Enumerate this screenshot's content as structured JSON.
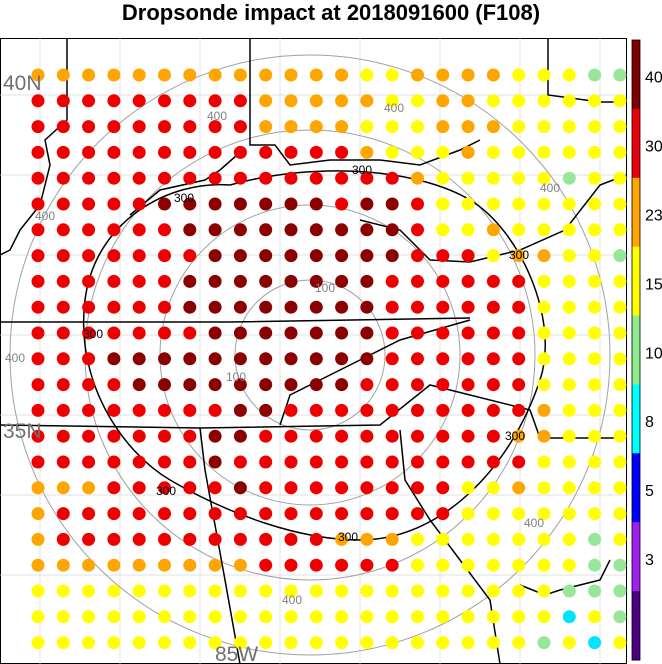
{
  "title": "Dropsonde impact at 2018091600 (F108)",
  "map_labels": {
    "lat_40": "40N",
    "lat_35": "35N",
    "lon_85": "85W"
  },
  "ring_labels": [
    "100",
    "400",
    "400",
    "400",
    "400",
    "400",
    "400",
    "400"
  ],
  "contour_label": "300",
  "colorbar": {
    "labels": [
      "40",
      "30",
      "23",
      "15",
      "10",
      "8",
      "5",
      "3"
    ],
    "colors": [
      "#7f0000",
      "#e8000b",
      "#ffa500",
      "#ffff00",
      "#90ee90",
      "#00ffff",
      "#0000ff",
      "#a020f0",
      "#4b0082"
    ]
  },
  "dot_colors": {
    "D": "#8b0000",
    "R": "#ee0000",
    "O": "#ffa500",
    "Y": "#ffff00",
    "G": "#98e698",
    "C": "#00e5ff"
  },
  "dot_grid": [
    "OOOOOOOOOOOOOYYOOOOYYYGG",
    "RRRRRRRRROOOOOYYOOYYYYYY",
    "RRRRRRRRROOOOYYYOOOYYYYY",
    "RRRRRRRRRRRRROYYYOYYYYYY",
    "RRRRRRRRRRRRRRROYYYYYGYY",
    "RRRRRDDDDDDDRDDRYYYYYYYY",
    "RRRRRRDDDDDDDDDRYYOYYYYY",
    "RRRRRRRDDDDDDDDRRRYOOYYG",
    "RRRRRRDDDDDDDDRRRRRRYYYY",
    "RRRRRRDDDDDDDDRRRRRRYYYY",
    "RRRRRRRDDDDDDDRRRRRRYYYY",
    "RRRDDDDDDDDDDDRRRRRRYYYY",
    "RRRRDDDDDDDDDRRRRRRRYYYY",
    "RRRRRRRRDDRRRRRRRRRROYYY",
    "RRRRRRRDDRRRRRRRRRROOYYY",
    "RRRRRRRDRRRRRRRRRRRRYYYY",
    "OOORRRRRDRRRRRRRRYYOYYYY",
    "ORRRRRRRRRRRRRRRRYYYYYYY",
    "ORRRRRRRRRRROOOYYYYYYYGY",
    "OOOOOOOOORRRRRRYYYYYYYGG",
    "YYYYYYYYYYYYYYYYYYYYYGGG",
    "YYYYYYYYYYYYYYYYYYYYYCYG",
    "YYYYYYYYYYYYYYYYYYYYGYCY"
  ]
}
